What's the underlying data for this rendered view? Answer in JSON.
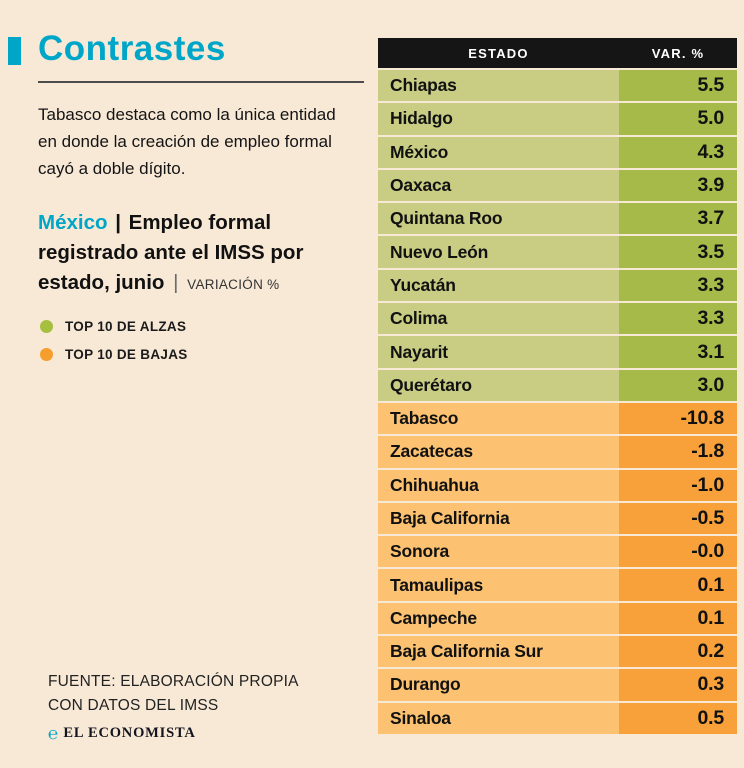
{
  "header": {
    "title": "Contrastes",
    "accent_color": "#00a6c8"
  },
  "intro": "Tabasco destaca como la única entidad en donde la creación de empleo formal cayó a doble dígito.",
  "subtitle": {
    "location": "México",
    "separator": "|",
    "text": "Empleo formal registrado ante el IMSS por estado, junio",
    "unit": "VARIACIÓN %"
  },
  "legend": [
    {
      "label": "TOP 10 DE ALZAS",
      "color": "#a7bf3e"
    },
    {
      "label": "TOP 10 DE BAJAS",
      "color": "#f59e2d"
    }
  ],
  "source": {
    "line1": "FUENTE: ELABORACIÓN PROPIA",
    "line2": "CON DATOS DEL IMSS",
    "brand_glyph": "℮",
    "brand": "EL ECONOMISTA"
  },
  "chart_data": {
    "type": "table",
    "title": "México | Empleo formal registrado ante el IMSS por estado, junio (variación %)",
    "columns": [
      "ESTADO",
      "VAR. %"
    ],
    "colors": {
      "alza": {
        "name_bg": "#c8cd83",
        "value_bg": "#a5ba49"
      },
      "baja": {
        "name_bg": "#fcc271",
        "value_bg": "#f8a13b"
      },
      "header_bg": "#151515",
      "background": "#f8e9d7"
    },
    "rows": [
      {
        "estado": "Chiapas",
        "var": "5.5",
        "group": "alza"
      },
      {
        "estado": "Hidalgo",
        "var": "5.0",
        "group": "alza"
      },
      {
        "estado": "México",
        "var": "4.3",
        "group": "alza"
      },
      {
        "estado": "Oaxaca",
        "var": "3.9",
        "group": "alza"
      },
      {
        "estado": "Quintana Roo",
        "var": "3.7",
        "group": "alza"
      },
      {
        "estado": "Nuevo León",
        "var": "3.5",
        "group": "alza"
      },
      {
        "estado": "Yucatán",
        "var": "3.3",
        "group": "alza"
      },
      {
        "estado": "Colima",
        "var": "3.3",
        "group": "alza"
      },
      {
        "estado": "Nayarit",
        "var": "3.1",
        "group": "alza"
      },
      {
        "estado": "Querétaro",
        "var": "3.0",
        "group": "alza"
      },
      {
        "estado": "Tabasco",
        "var": "-10.8",
        "group": "baja"
      },
      {
        "estado": "Zacatecas",
        "var": "-1.8",
        "group": "baja"
      },
      {
        "estado": "Chihuahua",
        "var": "-1.0",
        "group": "baja"
      },
      {
        "estado": "Baja California",
        "var": "-0.5",
        "group": "baja"
      },
      {
        "estado": "Sonora",
        "var": "-0.0",
        "group": "baja"
      },
      {
        "estado": "Tamaulipas",
        "var": "0.1",
        "group": "baja"
      },
      {
        "estado": "Campeche",
        "var": "0.1",
        "group": "baja"
      },
      {
        "estado": "Baja California Sur",
        "var": "0.2",
        "group": "baja"
      },
      {
        "estado": "Durango",
        "var": "0.3",
        "group": "baja"
      },
      {
        "estado": "Sinaloa",
        "var": "0.5",
        "group": "baja"
      }
    ]
  }
}
